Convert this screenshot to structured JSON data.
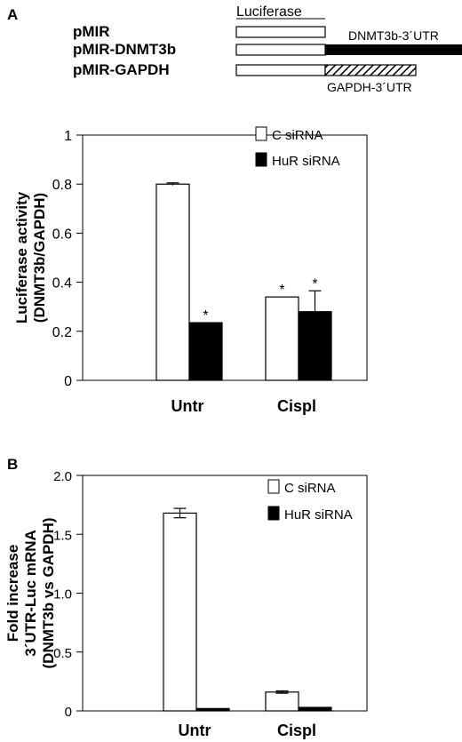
{
  "schematic": {
    "panel_label": "A",
    "header_label": "Luciferase",
    "constructs": [
      {
        "name": "pMIR",
        "utr_label": "",
        "utr": "none"
      },
      {
        "name": "pMIR-DNMT3b",
        "utr_label": "DNMT3b-3´UTR",
        "utr": "solid"
      },
      {
        "name": "pMIR-GAPDH",
        "utr_label": "GAPDH-3´UTR",
        "utr": "hatched"
      }
    ]
  },
  "chart_data": [
    {
      "type": "bar",
      "panel_label": "",
      "categories": [
        "Untr",
        "Cispl"
      ],
      "series": [
        {
          "name": "C siRNA",
          "values": [
            0.8,
            0.34
          ],
          "errors": [
            0.005,
            0.0
          ],
          "fill": "#ffffff",
          "significant": [
            false,
            true
          ]
        },
        {
          "name": "HuR siRNA",
          "values": [
            0.235,
            0.28
          ],
          "errors": [
            0.0,
            0.085
          ],
          "fill": "#000000",
          "significant": [
            true,
            true
          ]
        }
      ],
      "ylabel_lines": [
        "Luciferase activity",
        "(DNMT3b/GAPDH)"
      ],
      "ylim": [
        0,
        1
      ],
      "yticks": [
        0,
        0.2,
        0.4,
        0.6,
        0.8,
        1
      ],
      "ytick_labels": [
        "0",
        "0.2",
        "0.4",
        "0.6",
        "0.8",
        "1"
      ],
      "significance_marker": "*",
      "legend_position": "top-right"
    },
    {
      "type": "bar",
      "panel_label": "B",
      "categories": [
        "Untr",
        "Cispl"
      ],
      "series": [
        {
          "name": "C siRNA",
          "values": [
            1.68,
            0.16
          ],
          "errors": [
            0.04,
            0.01
          ],
          "fill": "#ffffff",
          "significant": [
            false,
            false
          ]
        },
        {
          "name": "HuR siRNA",
          "values": [
            0.02,
            0.03
          ],
          "errors": [
            0.0,
            0.0
          ],
          "fill": "#000000",
          "significant": [
            false,
            false
          ]
        }
      ],
      "ylabel_lines": [
        "Fold increase",
        "3´UTR-Luc mRNA",
        "(DNMT3b vs GAPDH)"
      ],
      "ylim": [
        0,
        2.0
      ],
      "yticks": [
        0,
        0.5,
        1.0,
        1.5,
        2.0
      ],
      "ytick_labels": [
        "0",
        "0.5",
        "1.0",
        "1.5",
        "2.0"
      ],
      "significance_marker": "",
      "legend_position": "top-right"
    }
  ]
}
